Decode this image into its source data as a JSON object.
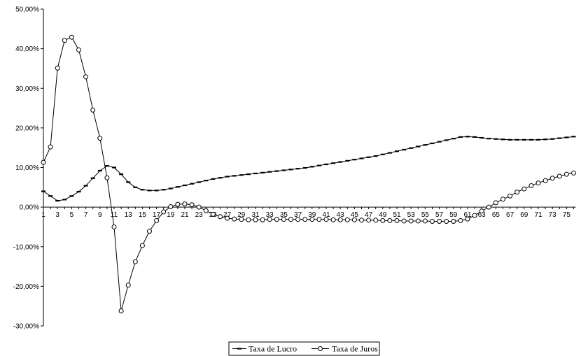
{
  "chart_data": {
    "type": "line",
    "title": "",
    "xlabel": "",
    "ylabel": "",
    "ylim": [
      -30,
      50
    ],
    "y_ticks": [
      "50,00%",
      "40,00%",
      "30,00%",
      "20,00%",
      "10,00%",
      "0,00%",
      "-10,00%",
      "-20,00%",
      "-30,00%"
    ],
    "x_tick_labels": [
      "1",
      "3",
      "5",
      "7",
      "9",
      "11",
      "13",
      "15",
      "17",
      "19",
      "21",
      "23",
      "25",
      "27",
      "29",
      "31",
      "33",
      "35",
      "37",
      "39",
      "41",
      "43",
      "45",
      "47",
      "49",
      "51",
      "53",
      "55",
      "57",
      "59",
      "61",
      "63",
      "65",
      "67",
      "69",
      "71",
      "73",
      "75"
    ],
    "grid": false,
    "legend_position": "bottom",
    "series": [
      {
        "name": "Taxa de Lucro",
        "marker": "dash",
        "color": "#000000",
        "values": [
          4.0,
          2.8,
          1.6,
          1.9,
          2.8,
          3.9,
          5.4,
          7.3,
          9.2,
          10.4,
          10.0,
          8.3,
          6.3,
          5.0,
          4.4,
          4.2,
          4.2,
          4.4,
          4.7,
          5.1,
          5.5,
          5.9,
          6.3,
          6.7,
          7.1,
          7.4,
          7.7,
          7.9,
          8.1,
          8.3,
          8.5,
          8.7,
          8.9,
          9.1,
          9.3,
          9.5,
          9.7,
          9.9,
          10.2,
          10.5,
          10.8,
          11.1,
          11.4,
          11.7,
          12.0,
          12.3,
          12.6,
          12.9,
          13.3,
          13.7,
          14.1,
          14.5,
          14.9,
          15.3,
          15.7,
          16.1,
          16.5,
          16.9,
          17.3,
          17.7,
          17.8,
          17.7,
          17.5,
          17.3,
          17.2,
          17.1,
          17.0,
          17.0,
          17.0,
          17.0,
          17.0,
          17.1,
          17.2,
          17.4,
          17.6,
          17.8
        ]
      },
      {
        "name": "Taxa de Juros",
        "marker": "circle",
        "color": "#000000",
        "values": [
          11.3,
          15.2,
          35.1,
          42.1,
          42.9,
          39.7,
          32.9,
          24.5,
          17.4,
          7.4,
          -5.0,
          -26.2,
          -19.7,
          -13.8,
          -9.7,
          -6.1,
          -3.4,
          -1.2,
          0.1,
          0.7,
          0.8,
          0.6,
          0.0,
          -0.9,
          -1.8,
          -2.4,
          -2.8,
          -3.0,
          -3.1,
          -3.2,
          -3.2,
          -3.2,
          -3.1,
          -3.1,
          -3.1,
          -3.1,
          -3.1,
          -3.1,
          -3.1,
          -3.1,
          -3.1,
          -3.2,
          -3.2,
          -3.2,
          -3.2,
          -3.3,
          -3.3,
          -3.3,
          -3.4,
          -3.4,
          -3.4,
          -3.5,
          -3.5,
          -3.5,
          -3.5,
          -3.6,
          -3.6,
          -3.6,
          -3.6,
          -3.4,
          -3.0,
          -2.1,
          -1.0,
          0.0,
          1.1,
          2.0,
          2.8,
          3.8,
          4.6,
          5.4,
          6.1,
          6.7,
          7.3,
          7.8,
          8.3,
          8.6
        ]
      }
    ]
  }
}
